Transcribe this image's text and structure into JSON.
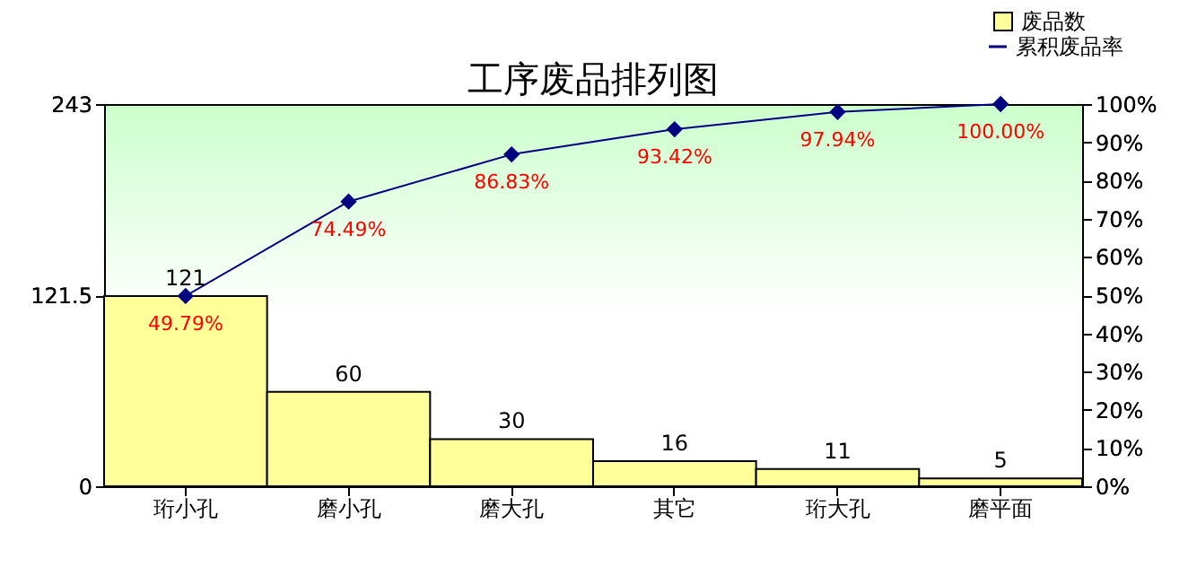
{
  "chart_data": {
    "type": "bar",
    "title": "工序废品排列图",
    "categories": [
      "珩小孔",
      "磨小孔",
      "磨大孔",
      "其它",
      "珩大孔",
      "磨平面"
    ],
    "series": [
      {
        "name": "废品数",
        "color": "#ffff99",
        "values": [
          121,
          60,
          30,
          16,
          11,
          5
        ],
        "value_labels": [
          "121",
          "60",
          "30",
          "16",
          "11",
          "5"
        ]
      },
      {
        "name": "累积废品率",
        "type": "line",
        "axis": "y2",
        "color": "#000080",
        "values": [
          49.79,
          74.49,
          86.83,
          93.42,
          97.94,
          100.0
        ],
        "value_labels": [
          "49.79%",
          "74.49%",
          "86.83%",
          "93.42%",
          "97.94%",
          "100.00%"
        ]
      }
    ],
    "ylim": [
      0,
      243
    ],
    "yticks": [
      0,
      121.5,
      243
    ],
    "y2lim": [
      0,
      100
    ],
    "y2ticks": [
      {
        "value": 0,
        "label": "0%"
      },
      {
        "value": 10,
        "label": "10%"
      },
      {
        "value": 20,
        "label": "20%"
      },
      {
        "value": 30,
        "label": "30%"
      },
      {
        "value": 40,
        "label": "40%"
      },
      {
        "value": 50,
        "label": "50%"
      },
      {
        "value": 60,
        "label": "60%"
      },
      {
        "value": 70,
        "label": "70%"
      },
      {
        "value": 80,
        "label": "80%"
      },
      {
        "value": 90,
        "label": "90%"
      },
      {
        "value": 100,
        "label": "100%"
      }
    ],
    "marker": "diamond",
    "legend": "top right"
  }
}
